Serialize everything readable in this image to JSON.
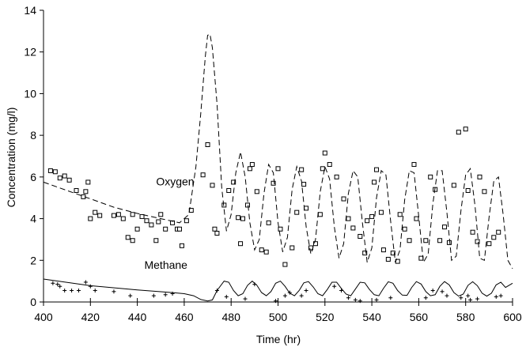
{
  "chart_data": {
    "type": "scatter",
    "title": "",
    "xlabel": "Time (hr)",
    "ylabel": "Concentration (mg/l)",
    "xlim": [
      400,
      600
    ],
    "ylim": [
      0,
      14
    ],
    "xticks": [
      400,
      420,
      440,
      460,
      480,
      500,
      520,
      540,
      560,
      580,
      600
    ],
    "yticks": [
      0,
      2,
      4,
      6,
      8,
      10,
      12,
      14
    ],
    "grid": false,
    "legend": "none",
    "annotations": [
      {
        "text": "Oxygen",
        "x": 448,
        "y": 5.6
      },
      {
        "text": "Methane",
        "x": 443,
        "y": 1.6
      }
    ],
    "colors": {
      "ink": "#000000",
      "background": "#ffffff"
    },
    "series": [
      {
        "name": "Oxygen (measured)",
        "kind": "scatter",
        "marker": "square",
        "x": [
          403,
          405,
          407,
          409,
          411,
          414,
          417,
          418,
          419,
          420,
          422,
          424,
          430,
          432,
          434,
          436,
          438,
          438,
          440,
          442,
          444,
          446,
          448,
          449,
          450,
          452,
          455,
          457,
          458,
          459,
          461,
          463,
          468,
          470,
          472,
          473,
          474,
          477,
          479,
          481,
          483,
          484,
          485,
          487,
          488,
          489,
          491,
          493,
          495,
          496,
          498,
          500,
          501,
          503,
          506,
          508,
          510,
          511,
          512,
          514,
          516,
          518,
          519,
          520,
          522,
          525,
          528,
          530,
          532,
          535,
          537,
          538,
          540,
          541,
          542,
          544,
          545,
          547,
          549,
          551,
          552,
          554,
          556,
          558,
          559,
          561,
          563,
          565,
          567,
          569,
          571,
          573,
          575,
          577,
          580,
          581,
          583,
          585,
          586,
          588,
          590,
          592,
          594
        ],
        "y": [
          6.3,
          6.25,
          5.95,
          6.05,
          5.85,
          5.35,
          5.05,
          5.3,
          5.75,
          4.0,
          4.3,
          4.15,
          4.15,
          4.2,
          4.0,
          3.1,
          4.2,
          2.95,
          3.5,
          4.1,
          3.9,
          3.7,
          2.95,
          3.85,
          4.2,
          3.5,
          3.8,
          3.5,
          3.5,
          2.7,
          3.9,
          4.4,
          6.1,
          7.55,
          5.6,
          3.5,
          3.3,
          4.65,
          5.35,
          5.75,
          4.05,
          2.8,
          4.0,
          4.65,
          6.4,
          6.6,
          5.3,
          2.5,
          2.4,
          3.8,
          5.7,
          6.4,
          3.5,
          1.8,
          2.6,
          4.3,
          6.35,
          5.65,
          4.5,
          2.6,
          2.8,
          4.2,
          6.4,
          7.15,
          6.6,
          6.0,
          4.95,
          4.0,
          3.55,
          3.15,
          2.35,
          3.9,
          4.1,
          5.75,
          6.35,
          4.3,
          2.5,
          2.05,
          2.35,
          1.95,
          4.2,
          3.5,
          2.95,
          6.6,
          4.0,
          2.1,
          2.95,
          6.0,
          5.4,
          2.95,
          3.6,
          2.85,
          5.6,
          8.15,
          8.3,
          5.35,
          3.35,
          2.9,
          6.0,
          5.3,
          2.8,
          3.1,
          3.35
        ]
      },
      {
        "name": "Oxygen (model)",
        "kind": "line",
        "dash": "dashed",
        "x": [
          400,
          410,
          420,
          430,
          440,
          450,
          458,
          462,
          465,
          467,
          469,
          470,
          471,
          472,
          474,
          476,
          478,
          480,
          482,
          484,
          486,
          488,
          490,
          492,
          494,
          496,
          498,
          500,
          502,
          504,
          506,
          508,
          510,
          512,
          514,
          516,
          518,
          520,
          522,
          524,
          526,
          528,
          530,
          532,
          534,
          536,
          538,
          540,
          542,
          544,
          546,
          548,
          550,
          552,
          554,
          556,
          558,
          560,
          562,
          564,
          566,
          568,
          570,
          572,
          574,
          576,
          578,
          580,
          582,
          584,
          586,
          588,
          590,
          592,
          594,
          596,
          598,
          600
        ],
        "y": [
          5.75,
          5.35,
          4.95,
          4.55,
          4.25,
          4.0,
          3.8,
          4.2,
          6.5,
          9.0,
          11.8,
          12.8,
          12.85,
          12.2,
          9.5,
          5.5,
          3.4,
          4.2,
          6.2,
          7.2,
          6.0,
          3.8,
          2.5,
          3.0,
          5.2,
          6.6,
          6.2,
          3.8,
          2.4,
          3.1,
          5.4,
          6.5,
          5.8,
          3.6,
          2.3,
          3.0,
          5.3,
          6.5,
          5.9,
          3.6,
          2.1,
          2.8,
          5.2,
          6.3,
          6.0,
          3.8,
          1.9,
          2.6,
          5.0,
          6.3,
          6.1,
          3.9,
          1.9,
          2.5,
          4.9,
          6.3,
          6.2,
          4.1,
          1.9,
          2.3,
          4.7,
          6.3,
          6.3,
          4.3,
          2.0,
          2.2,
          4.4,
          6.1,
          6.4,
          4.6,
          2.1,
          2.0,
          4.1,
          5.8,
          6.0,
          4.2,
          2.0,
          1.6
        ]
      },
      {
        "name": "Methane (measured)",
        "kind": "scatter",
        "marker": "plus",
        "x": [
          404,
          406,
          407,
          409,
          412,
          415,
          418,
          420,
          422,
          430,
          437,
          447,
          452,
          455,
          474,
          478,
          486,
          490,
          499,
          503,
          505,
          510,
          512,
          524,
          527,
          530,
          533,
          535,
          542,
          548,
          563,
          566,
          570,
          572,
          578,
          581,
          582,
          585,
          593,
          595
        ],
        "y": [
          0.9,
          0.85,
          0.75,
          0.55,
          0.55,
          0.55,
          0.95,
          0.75,
          0.55,
          0.5,
          0.3,
          0.3,
          0.35,
          0.4,
          0.55,
          0.25,
          0.15,
          0.85,
          0.05,
          0.3,
          0.45,
          0.3,
          0.55,
          0.75,
          0.55,
          0.2,
          0.1,
          0.05,
          0.1,
          0.2,
          0.2,
          0.55,
          0.5,
          0.3,
          0.2,
          0.3,
          0.1,
          0.15,
          0.25,
          0.3
        ]
      },
      {
        "name": "Methane (model)",
        "kind": "line",
        "dash": "solid",
        "x": [
          400,
          420,
          440,
          455,
          460,
          464,
          467,
          470,
          472,
          474,
          477,
          479,
          481,
          483,
          485,
          487,
          489,
          491,
          493,
          495,
          497,
          499,
          501,
          503,
          505,
          507,
          509,
          511,
          513,
          515,
          517,
          519,
          521,
          523,
          525,
          527,
          529,
          531,
          533,
          535,
          537,
          539,
          541,
          543,
          545,
          547,
          549,
          551,
          553,
          555,
          557,
          559,
          561,
          563,
          565,
          567,
          569,
          571,
          573,
          575,
          577,
          579,
          581,
          583,
          585,
          587,
          589,
          591,
          593,
          595,
          597,
          600
        ],
        "y": [
          1.1,
          0.78,
          0.58,
          0.45,
          0.4,
          0.3,
          0.12,
          0.05,
          0.1,
          0.55,
          1.0,
          0.95,
          0.55,
          0.3,
          0.4,
          0.8,
          1.0,
          0.8,
          0.45,
          0.3,
          0.5,
          0.9,
          1.0,
          0.75,
          0.42,
          0.3,
          0.55,
          0.92,
          0.98,
          0.72,
          0.4,
          0.3,
          0.6,
          0.95,
          0.95,
          0.65,
          0.38,
          0.3,
          0.62,
          0.95,
          0.92,
          0.6,
          0.35,
          0.3,
          0.66,
          0.97,
          0.9,
          0.55,
          0.33,
          0.32,
          0.7,
          0.98,
          0.86,
          0.5,
          0.3,
          0.35,
          0.75,
          0.98,
          0.82,
          0.45,
          0.28,
          0.38,
          0.8,
          0.97,
          0.78,
          0.42,
          0.28,
          0.42,
          0.82,
          0.95,
          0.7,
          0.9
        ]
      }
    ]
  }
}
